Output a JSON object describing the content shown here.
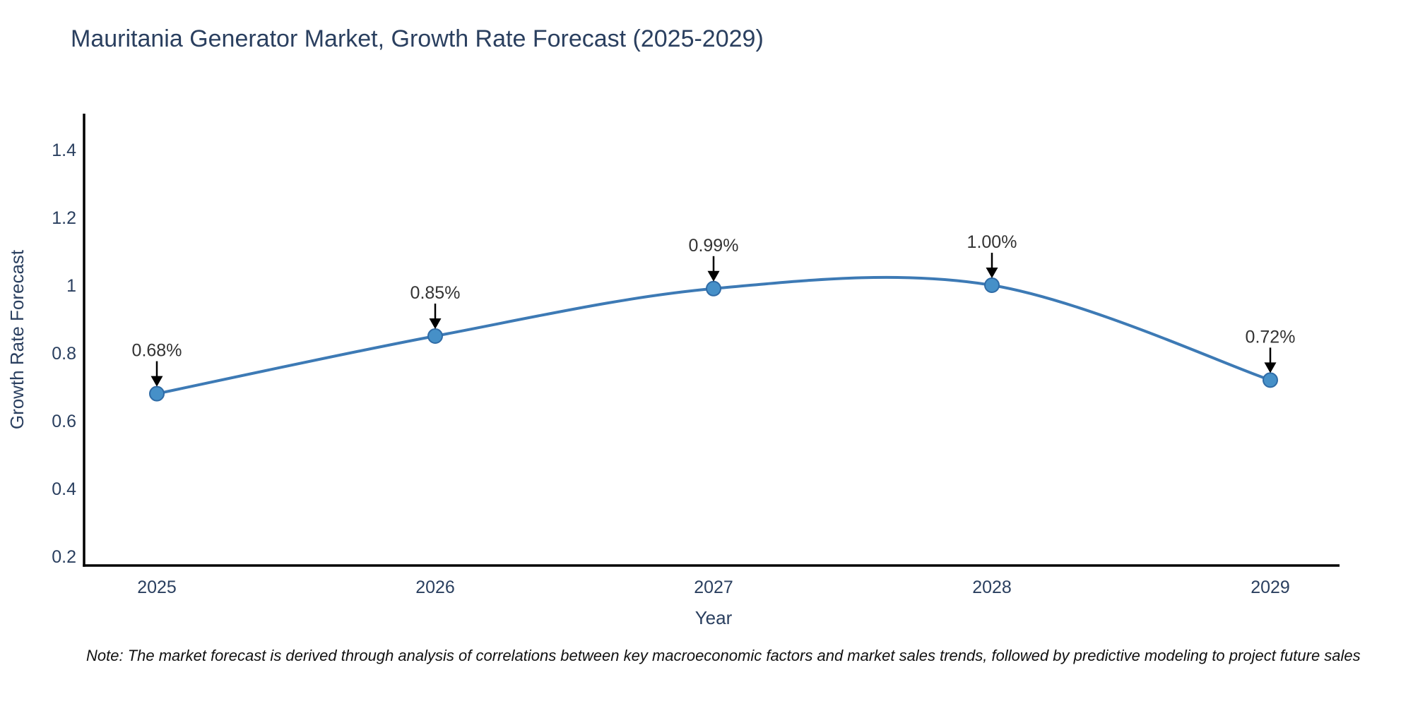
{
  "title": "Mauritania Generator Market, Growth Rate Forecast (2025-2029)",
  "note": "Note: The market forecast is derived through analysis of correlations between key macroeconomic factors and market sales trends, followed by predictive modeling to project future sales",
  "colors": {
    "line": "#3d7ab5",
    "marker_fill": "#4690c8",
    "marker_stroke": "#2f6ba6",
    "axis": "#000000",
    "text": "#2a3f5f",
    "arrow": "#000000",
    "background": "#ffffff"
  },
  "chart_data": {
    "type": "line",
    "title": "Mauritania Generator Market, Growth Rate Forecast (2025-2029)",
    "xlabel": "Year",
    "ylabel": "Growth Rate Forecast",
    "x": [
      2025,
      2026,
      2027,
      2028,
      2029
    ],
    "series": [
      {
        "name": "Growth Rate Forecast",
        "values": [
          0.68,
          0.85,
          0.99,
          1.0,
          0.72
        ]
      }
    ],
    "point_labels": [
      "0.68%",
      "0.85%",
      "0.99%",
      "1.00%",
      "0.72%"
    ],
    "xtick_labels": [
      "2025",
      "2026",
      "2027",
      "2028",
      "2029"
    ],
    "ytick_labels": [
      "0.2",
      "0.4",
      "0.6",
      "0.8",
      "1",
      "1.2",
      "1.4"
    ],
    "yticks": [
      0.2,
      0.4,
      0.6,
      0.8,
      1.0,
      1.2,
      1.4
    ],
    "ylim": [
      0.16,
      1.5
    ],
    "xlim": [
      2024.74,
      2029.25
    ],
    "grid": false,
    "legend": "none",
    "line_shape": "spline",
    "annotations": "value labels with down arrows above each point"
  }
}
